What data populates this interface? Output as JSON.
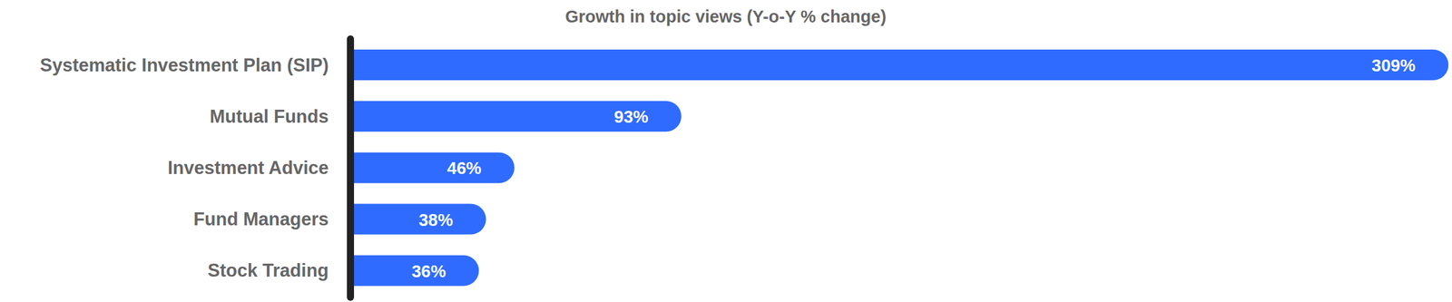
{
  "chart_data": {
    "type": "bar",
    "title": "Growth in topic views (Y-o-Y % change)",
    "orientation": "horizontal",
    "categories": [
      "Systematic Investment Plan (SIP)",
      "Mutual Funds",
      "Investment Advice",
      "Fund Managers",
      "Stock Trading"
    ],
    "values": [
      309,
      93,
      46,
      38,
      36
    ],
    "value_labels": [
      "309%",
      "93%",
      "46%",
      "38%",
      "36%"
    ],
    "color": "#2f6bff",
    "xlim": [
      0,
      309
    ],
    "data_labels": true,
    "tick_labels": "y",
    "grid": false
  }
}
